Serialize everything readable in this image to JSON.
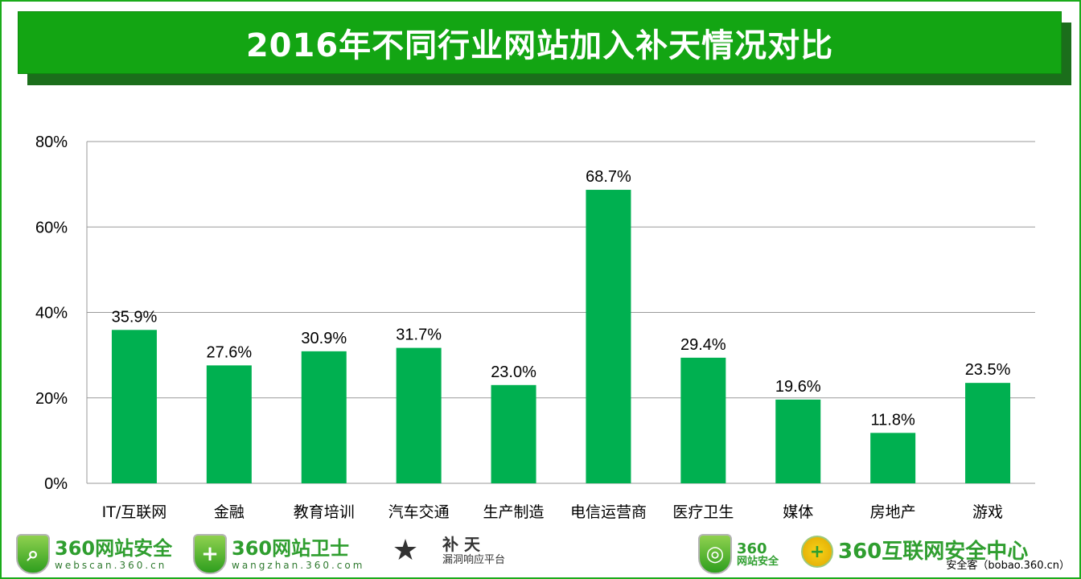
{
  "title": "2016年不同行业网站加入补天情况对比",
  "chart_data": {
    "type": "bar",
    "title": "2016年不同行业网站加入补天情况对比",
    "categories": [
      "IT/互联网",
      "金融",
      "教育培训",
      "汽车交通",
      "生产制造",
      "电信运营商",
      "医疗卫生",
      "媒体",
      "房地产",
      "游戏"
    ],
    "values": [
      35.9,
      27.6,
      30.9,
      31.7,
      23.0,
      68.7,
      29.4,
      19.6,
      11.8,
      23.5
    ],
    "data_labels": [
      "35.9%",
      "27.6%",
      "30.9%",
      "31.7%",
      "23.0%",
      "68.7%",
      "29.4%",
      "19.6%",
      "11.8%",
      "23.5%"
    ],
    "yticks": [
      "0%",
      "20%",
      "40%",
      "60%",
      "80%"
    ],
    "ytick_values": [
      0,
      20,
      40,
      60,
      80
    ],
    "ylim": [
      0,
      80
    ],
    "xlabel": "",
    "ylabel": "",
    "grid": true,
    "bar_color": "#00b050"
  },
  "footer": {
    "logo1": {
      "name": "360网站安全",
      "url": "webscan.360.cn"
    },
    "logo2": {
      "name": "360网站卫士",
      "url": "wangzhan.360.com"
    },
    "logo3": {
      "name": "补 天",
      "sub": "漏洞响应平台"
    },
    "logo4": {
      "line1": "360",
      "line2": "网站安全"
    },
    "logo5": {
      "name": "360互联网安全中心"
    },
    "credit": "安全客（bobao.360.cn）"
  }
}
